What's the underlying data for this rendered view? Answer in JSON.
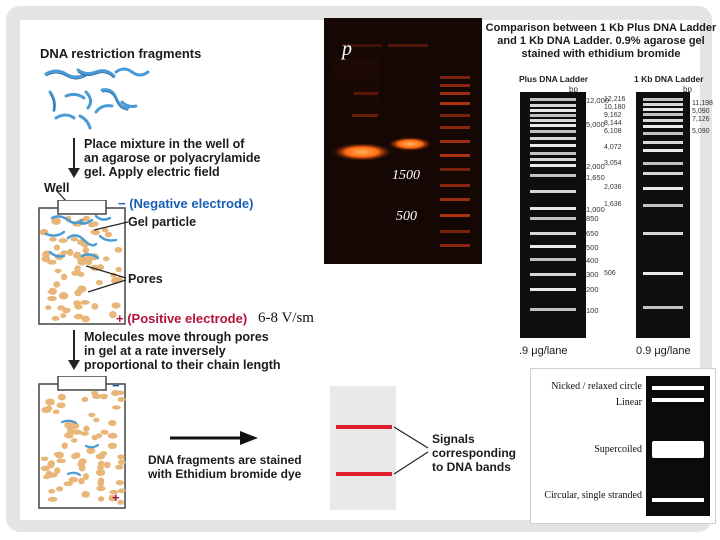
{
  "left_diagram": {
    "title": "DNA restriction fragments",
    "step1": [
      "Place mixture in the well of",
      "an agarose or polyacrylamide",
      "gel. Apply electric field"
    ],
    "well_label": "Well",
    "negative_label": "(Negative electrode)",
    "negative_sign": "−",
    "gel_particle_label": "Gel particle",
    "pores_label": "Pores",
    "positive_label": "(Positive electrode)",
    "positive_sign": "+",
    "voltage_label": "6-8 V/sm",
    "step2": [
      "Molecules move through pores",
      "in gel at a rate inversely",
      "proportional to their chain length"
    ],
    "stain_text": [
      "DNA fragments are stained",
      "with Ethidium bromide dye"
    ],
    "signals_text": [
      "Signals",
      "corresponding",
      "to DNA bands"
    ]
  },
  "gel_photo": {
    "lane_letter": "p",
    "marker_1500": "1500",
    "marker_500": "500"
  },
  "ladder": {
    "title": [
      "Comparison between 1 Kb Plus DNA Ladder",
      "and 1 Kb DNA Ladder. 0.9% agarose gel",
      "stained with ethidium bromide"
    ],
    "lane1_title": "Plus DNA Ladder",
    "lane2_title": "1 Kb DNA Ladder",
    "bp_unit": "bp",
    "lane1_labels": [
      "12,000",
      "5,000",
      "2,000",
      "1,650",
      "1,000",
      "850",
      "650",
      "500",
      "400",
      "300",
      "200",
      "100"
    ],
    "lane2_labels_left": [
      "12,216",
      "10,180",
      "9,162",
      "8,144",
      "6,108",
      "4,072",
      "3,054",
      "2,036",
      "1,636",
      "506"
    ],
    "lane2_labels_right": [
      "11,198",
      "5,090",
      "7,126",
      "5,090"
    ],
    "footer_left": ".9 μg/lane",
    "footer_right": "0.9 μg/lane"
  },
  "conformations": {
    "items": [
      "Nicked / relaxed circle",
      "Linear",
      "Supercoiled",
      "Circular, single stranded"
    ]
  },
  "colors": {
    "band_red": "#e0202e",
    "gel_orange": "#ff6a10",
    "bead": "#e8b679",
    "strand": "#4a9bd4"
  }
}
